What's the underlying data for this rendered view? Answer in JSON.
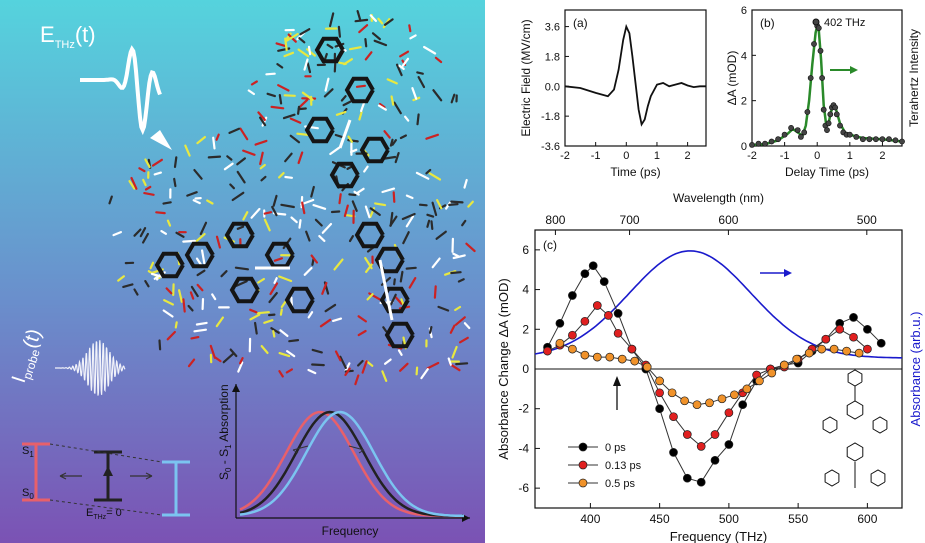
{
  "left_panel": {
    "field_label": "E",
    "field_sub": "THz",
    "field_arg": "(t)",
    "probe_label": "I",
    "probe_sub": "probe",
    "probe_arg": "(t)",
    "level_upper": "S",
    "level_upper_sub": "1",
    "level_lower": "S",
    "level_lower_sub": "0",
    "ethz_zero": "E",
    "ethz_zero_sub": "THz",
    "ethz_zero_tail": "= 0",
    "inset_ylabel": "S",
    "inset_ylabel_sub0": "0",
    "inset_ylabel_mid": " - S",
    "inset_ylabel_sub1": "1",
    "inset_ylabel_tail": " Absorption",
    "inset_xlabel": "Frequency",
    "colors": {
      "red": "#e8606a",
      "blue": "#7bc4f0",
      "black": "#222222",
      "bg_top": "#56d0dc",
      "bg_bottom": "#7a55b5"
    }
  },
  "chart_data": [
    {
      "panel": "(a)",
      "type": "line",
      "xlabel": "Time (ps)",
      "ylabel": "Electric Field (MV/cm)",
      "xlim": [
        -2,
        2.6
      ],
      "ylim": [
        -3.6,
        4.6
      ],
      "xticks": [
        -2,
        -1,
        0,
        1,
        2
      ],
      "yticks": [
        -3.6,
        -1.8,
        0.0,
        1.8,
        3.6
      ],
      "ytick_labels": [
        "-3.6",
        "-1.8",
        "0.0",
        "1.8",
        "3.6"
      ],
      "series": [
        {
          "x": [
            -2.0,
            -1.5,
            -1.0,
            -0.6,
            -0.4,
            -0.25,
            -0.1,
            0.0,
            0.1,
            0.2,
            0.3,
            0.4,
            0.5,
            0.6,
            0.7,
            0.8,
            1.0,
            1.2,
            1.4,
            1.6,
            1.8,
            2.0,
            2.2,
            2.4,
            2.6
          ],
          "y": [
            0.0,
            -0.1,
            -0.4,
            -0.6,
            -0.2,
            1.0,
            2.8,
            3.6,
            3.2,
            1.8,
            0.2,
            -1.4,
            -2.3,
            -2.0,
            -1.2,
            -0.6,
            0.1,
            0.2,
            0.0,
            0.1,
            0.2,
            0.05,
            -0.05,
            0.0,
            0.0
          ]
        }
      ]
    },
    {
      "panel": "(b)",
      "type": "scatter",
      "xlabel": "Delay Time (ps)",
      "ylabel": "ΔA (mOD)",
      "ylabel_right": "Terahertz Intensity",
      "legend": "402 THz",
      "xlim": [
        -2,
        2.6
      ],
      "ylim": [
        0,
        6
      ],
      "xticks": [
        -2,
        -1,
        0,
        1,
        2
      ],
      "yticks": [
        0,
        2,
        4,
        6
      ],
      "series": [
        {
          "name": "402 THz",
          "x": [
            -2.0,
            -1.8,
            -1.6,
            -1.4,
            -1.2,
            -1.0,
            -0.8,
            -0.6,
            -0.5,
            -0.4,
            -0.3,
            -0.2,
            -0.1,
            0.0,
            0.05,
            0.1,
            0.15,
            0.2,
            0.25,
            0.3,
            0.35,
            0.4,
            0.45,
            0.5,
            0.55,
            0.6,
            0.7,
            0.8,
            0.9,
            1.0,
            1.2,
            1.4,
            1.6,
            1.8,
            2.0,
            2.2,
            2.4,
            2.6
          ],
          "y": [
            0.05,
            0.1,
            0.1,
            0.2,
            0.3,
            0.5,
            0.8,
            0.7,
            0.4,
            0.6,
            1.5,
            3.0,
            4.5,
            5.3,
            5.2,
            4.2,
            3.0,
            1.6,
            0.9,
            0.7,
            1.0,
            1.4,
            1.7,
            1.8,
            1.7,
            1.4,
            0.9,
            0.6,
            0.5,
            0.5,
            0.4,
            0.3,
            0.3,
            0.3,
            0.3,
            0.3,
            0.25,
            0.2
          ]
        }
      ],
      "fit": {
        "color": "#2a8a2a",
        "x": [
          -2.0,
          -1.6,
          -1.2,
          -0.9,
          -0.75,
          -0.6,
          -0.45,
          -0.35,
          -0.25,
          -0.15,
          -0.05,
          0.0,
          0.05,
          0.12,
          0.2,
          0.28,
          0.35,
          0.42,
          0.5,
          0.58,
          0.7,
          0.85,
          1.0,
          1.4,
          2.0,
          2.6
        ],
        "y": [
          0.05,
          0.08,
          0.25,
          0.55,
          0.75,
          0.6,
          0.45,
          0.9,
          2.0,
          3.6,
          5.0,
          5.3,
          5.1,
          3.8,
          1.8,
          0.9,
          1.0,
          1.5,
          1.8,
          1.6,
          1.0,
          0.6,
          0.5,
          0.35,
          0.3,
          0.2
        ]
      }
    },
    {
      "panel": "(c)",
      "type": "line",
      "xlabel": "Frequency (THz)",
      "ylabel": "Absorbance Change ΔA (mOD)",
      "ylabel_right": "Absorbance (arb.u.)",
      "top_xlabel": "Wavelength (nm)",
      "top_xticks": [
        800,
        700,
        600,
        500
      ],
      "xlim": [
        360,
        625
      ],
      "ylim": [
        -7,
        7
      ],
      "xticks": [
        400,
        450,
        500,
        550,
        600
      ],
      "yticks": [
        -6,
        -4,
        -2,
        0,
        2,
        4,
        6
      ],
      "series": [
        {
          "name": "0 ps",
          "color": "#000000",
          "x": [
            369,
            378,
            387,
            396,
            402,
            410,
            420,
            430,
            440,
            450,
            460,
            470,
            480,
            490,
            500,
            510,
            520,
            530,
            540,
            550,
            560,
            570,
            580,
            590,
            600,
            610
          ],
          "y": [
            1.1,
            2.3,
            3.7,
            4.8,
            5.2,
            4.4,
            2.8,
            1.0,
            0.0,
            -2.0,
            -4.2,
            -5.5,
            -5.7,
            -4.6,
            -3.8,
            -1.8,
            -0.6,
            0.0,
            0.2,
            0.3,
            0.9,
            1.5,
            2.3,
            2.6,
            2.0,
            1.3
          ]
        },
        {
          "name": "0.13 ps",
          "color": "#e02020",
          "x": [
            369,
            378,
            387,
            396,
            405,
            413,
            420,
            430,
            440,
            450,
            460,
            470,
            480,
            490,
            500,
            510,
            520,
            530,
            540,
            550,
            560,
            570,
            580,
            590,
            600
          ],
          "y": [
            0.9,
            1.2,
            1.7,
            2.4,
            3.2,
            2.7,
            1.8,
            1.0,
            0.2,
            -1.2,
            -2.4,
            -3.3,
            -3.9,
            -3.3,
            -2.2,
            -1.2,
            -0.3,
            0.0,
            0.1,
            0.5,
            1.0,
            1.5,
            2.0,
            1.6,
            1.0
          ]
        },
        {
          "name": "0.5 ps",
          "color": "#f0922a",
          "x": [
            378,
            387,
            396,
            405,
            414,
            423,
            432,
            441,
            450,
            459,
            468,
            477,
            486,
            495,
            504,
            513,
            522,
            531,
            540,
            549,
            558,
            567,
            576,
            585,
            594
          ],
          "y": [
            1.3,
            1.0,
            0.7,
            0.6,
            0.6,
            0.5,
            0.4,
            0.1,
            -0.6,
            -1.2,
            -1.6,
            -1.8,
            -1.7,
            -1.5,
            -1.3,
            -1.0,
            -0.6,
            -0.2,
            0.2,
            0.5,
            0.8,
            1.0,
            1.0,
            0.9,
            0.8
          ]
        }
      ],
      "absorbance_curve": {
        "color": "#1a1acc",
        "x": [
          360,
          380,
          400,
          420,
          440,
          460,
          480,
          500,
          520,
          540,
          560,
          580,
          600,
          625
        ],
        "y": [
          0.6,
          1.5,
          3.0,
          4.4,
          5.4,
          5.9,
          5.8,
          5.1,
          4.0,
          2.8,
          1.9,
          1.2,
          0.9,
          0.6
        ]
      }
    }
  ]
}
